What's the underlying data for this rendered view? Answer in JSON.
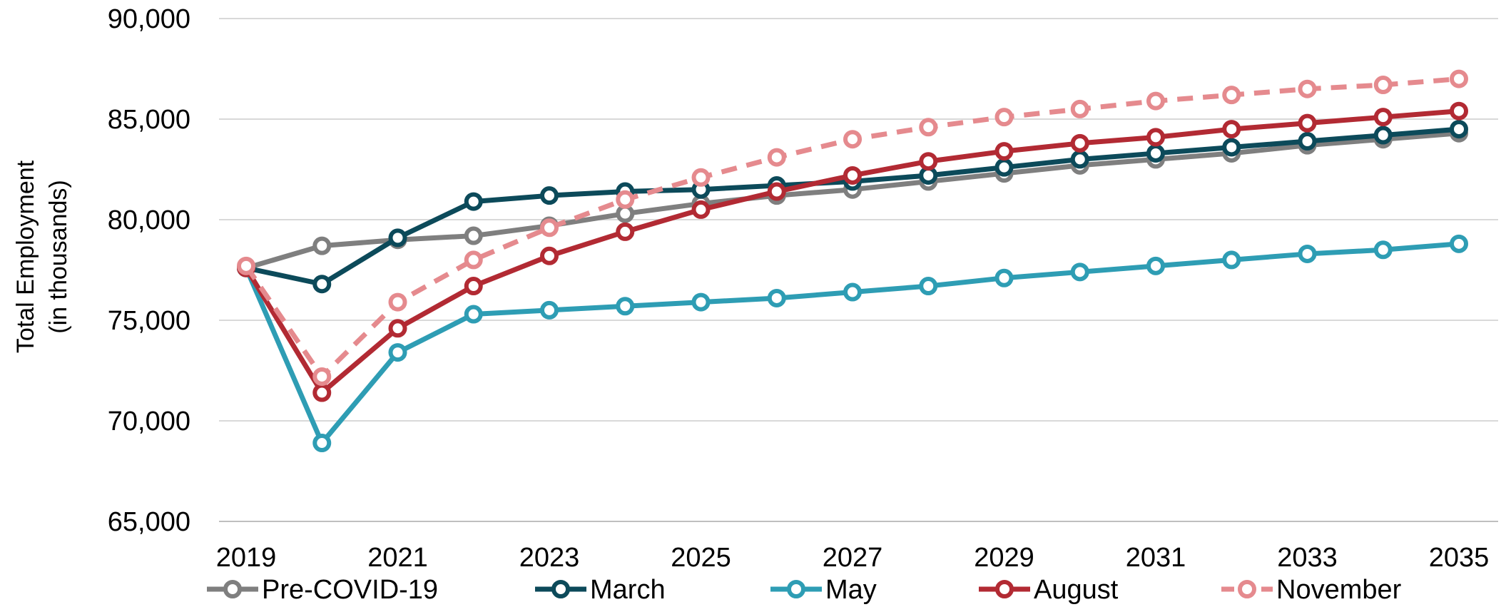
{
  "chart_data": {
    "type": "line",
    "title": "",
    "xlabel": "",
    "ylabel_line1": "Total Employment",
    "ylabel_line2": "(in thousands)",
    "x": [
      2019,
      2020,
      2021,
      2022,
      2023,
      2024,
      2025,
      2026,
      2027,
      2028,
      2029,
      2030,
      2031,
      2032,
      2033,
      2034,
      2035
    ],
    "x_tick_labels": [
      "2019",
      "2021",
      "2023",
      "2025",
      "2027",
      "2029",
      "2031",
      "2033",
      "2035"
    ],
    "y_tick_labels": [
      "90,000",
      "85,000",
      "80,000",
      "75,000",
      "70,000",
      "65,000"
    ],
    "ylim": [
      65000,
      90000
    ],
    "xlim": [
      2019,
      2035
    ],
    "grid": "horizontal",
    "legend_position": "bottom",
    "series": [
      {
        "name": "Pre-COVID-19",
        "color": "#7f7f7f",
        "dashed": false,
        "values": [
          77600,
          78700,
          79000,
          79200,
          79700,
          80300,
          80800,
          81200,
          81500,
          81900,
          82300,
          82700,
          83000,
          83300,
          83700,
          84000,
          84300
        ]
      },
      {
        "name": "March",
        "color": "#0c4a5a",
        "dashed": false,
        "values": [
          77600,
          76800,
          79100,
          80900,
          81200,
          81400,
          81500,
          81700,
          81900,
          82200,
          82600,
          83000,
          83300,
          83600,
          83900,
          84200,
          84500
        ]
      },
      {
        "name": "May",
        "color": "#2e9db4",
        "dashed": false,
        "values": [
          77600,
          68900,
          73400,
          75300,
          75500,
          75700,
          75900,
          76100,
          76400,
          76700,
          77100,
          77400,
          77700,
          78000,
          78300,
          78500,
          78800
        ]
      },
      {
        "name": "August",
        "color": "#b22a33",
        "dashed": false,
        "values": [
          77600,
          71400,
          74600,
          76700,
          78200,
          79400,
          80500,
          81400,
          82200,
          82900,
          83400,
          83800,
          84100,
          84500,
          84800,
          85100,
          85400
        ]
      },
      {
        "name": "November",
        "color": "#e58a8e",
        "dashed": true,
        "values": [
          77700,
          72200,
          75900,
          78000,
          79600,
          81000,
          82100,
          83100,
          84000,
          84600,
          85100,
          85500,
          85900,
          86200,
          86500,
          86700,
          87000
        ]
      }
    ]
  }
}
